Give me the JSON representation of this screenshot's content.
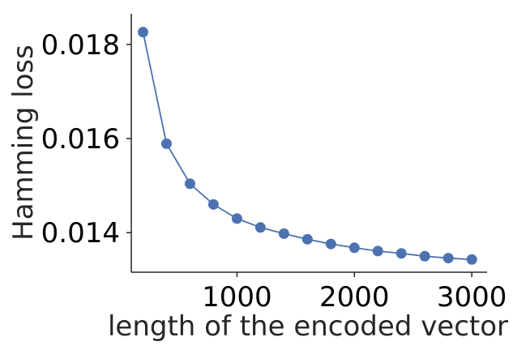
{
  "chart_data": {
    "type": "line",
    "xlabel": "length of the encoded vector",
    "ylabel": "Hamming loss",
    "xlim": [
      100,
      3130
    ],
    "ylim": [
      0.01316,
      0.01865
    ],
    "x_ticks": [
      1000,
      2000,
      3000
    ],
    "x_tick_labels": [
      "1000",
      "2000",
      "3000"
    ],
    "y_ticks": [
      0.014,
      0.016,
      0.018
    ],
    "y_tick_labels": [
      "0.014",
      "0.016",
      "0.018"
    ],
    "grid": false,
    "series": [
      {
        "color": "#4c72b0",
        "marker": "circle",
        "x": [
          200,
          400,
          600,
          800,
          1000,
          1200,
          1400,
          1600,
          1800,
          2000,
          2200,
          2400,
          2600,
          2800,
          3000
        ],
        "y": [
          0.01826,
          0.01589,
          0.01504,
          0.0146,
          0.0143,
          0.01411,
          0.01398,
          0.01386,
          0.01376,
          0.01368,
          0.01361,
          0.01356,
          0.0135,
          0.01346,
          0.01343
        ]
      }
    ]
  }
}
